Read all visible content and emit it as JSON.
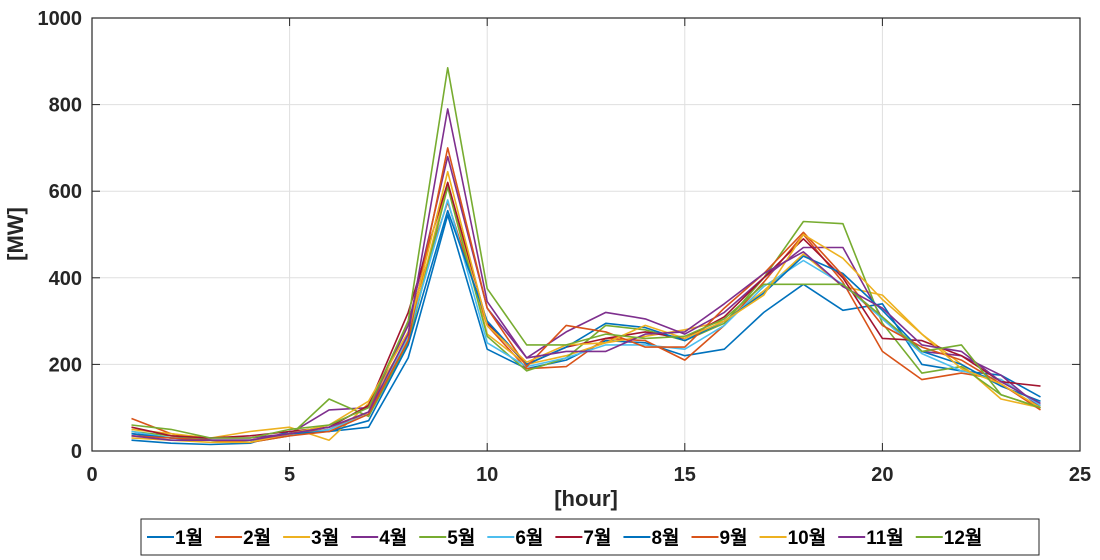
{
  "chart_data": {
    "type": "line",
    "xlabel": "[hour]",
    "ylabel": "[MW]",
    "xlim": [
      0,
      25
    ],
    "ylim": [
      0,
      1000
    ],
    "xticks": [
      0,
      5,
      10,
      15,
      20,
      25
    ],
    "yticks": [
      0,
      200,
      400,
      600,
      800,
      1000
    ],
    "grid": true,
    "legend_position": "bottom",
    "x": [
      1,
      2,
      3,
      4,
      5,
      6,
      7,
      8,
      9,
      10,
      11,
      12,
      13,
      14,
      15,
      16,
      17,
      18,
      19,
      20,
      21,
      22,
      23,
      24
    ],
    "series": [
      {
        "name": "1월",
        "color": "#0072BD",
        "values": [
          25,
          18,
          15,
          18,
          45,
          45,
          55,
          215,
          545,
          235,
          190,
          210,
          255,
          250,
          220,
          235,
          320,
          385,
          325,
          340,
          200,
          185,
          175,
          125
        ]
      },
      {
        "name": "2월",
        "color": "#D95319",
        "values": [
          75,
          40,
          25,
          25,
          40,
          50,
          90,
          300,
          575,
          290,
          190,
          195,
          260,
          255,
          210,
          290,
          390,
          500,
          390,
          230,
          165,
          180,
          165,
          105
        ]
      },
      {
        "name": "3월",
        "color": "#EDB120",
        "values": [
          50,
          40,
          30,
          45,
          55,
          25,
          110,
          260,
          620,
          270,
          200,
          220,
          250,
          265,
          280,
          300,
          370,
          455,
          380,
          360,
          270,
          200,
          120,
          100
        ]
      },
      {
        "name": "4월",
        "color": "#7E2F8E",
        "values": [
          40,
          30,
          30,
          30,
          40,
          95,
          100,
          290,
          680,
          330,
          215,
          275,
          320,
          305,
          270,
          320,
          400,
          470,
          470,
          305,
          230,
          220,
          175,
          100
        ]
      },
      {
        "name": "5월",
        "color": "#77AC30",
        "values": [
          45,
          35,
          25,
          20,
          35,
          120,
          80,
          250,
          610,
          265,
          185,
          215,
          290,
          280,
          255,
          295,
          400,
          530,
          525,
          295,
          180,
          195,
          130,
          100
        ]
      },
      {
        "name": "6월",
        "color": "#4DBEEE",
        "values": [
          45,
          30,
          25,
          25,
          35,
          50,
          85,
          265,
          580,
          250,
          195,
          215,
          245,
          245,
          235,
          290,
          380,
          440,
          385,
          305,
          225,
          185,
          165,
          105
        ]
      },
      {
        "name": "7월",
        "color": "#A2142F",
        "values": [
          55,
          35,
          30,
          35,
          45,
          55,
          105,
          320,
          620,
          295,
          200,
          240,
          260,
          275,
          260,
          310,
          400,
          490,
          400,
          260,
          255,
          220,
          160,
          150
        ]
      },
      {
        "name": "8월",
        "color": "#0072BD",
        "values": [
          40,
          30,
          25,
          20,
          40,
          45,
          70,
          245,
          555,
          300,
          200,
          240,
          295,
          285,
          255,
          300,
          365,
          450,
          410,
          325,
          230,
          200,
          150,
          115
        ]
      },
      {
        "name": "9월",
        "color": "#D95319",
        "values": [
          35,
          30,
          25,
          20,
          35,
          45,
          85,
          255,
          700,
          330,
          195,
          290,
          275,
          240,
          240,
          330,
          410,
          505,
          405,
          290,
          240,
          210,
          155,
          95
        ]
      },
      {
        "name": "10월",
        "color": "#EDB120",
        "values": [
          30,
          25,
          20,
          20,
          40,
          60,
          115,
          275,
          645,
          290,
          205,
          245,
          250,
          290,
          260,
          300,
          360,
          500,
          445,
          350,
          270,
          190,
          155,
          100
        ]
      },
      {
        "name": "11월",
        "color": "#7E2F8E",
        "values": [
          35,
          25,
          25,
          25,
          40,
          55,
          90,
          270,
          790,
          345,
          215,
          230,
          230,
          270,
          275,
          340,
          410,
          460,
          380,
          330,
          245,
          230,
          160,
          110
        ]
      },
      {
        "name": "12월",
        "color": "#77AC30",
        "values": [
          60,
          50,
          30,
          30,
          50,
          60,
          100,
          300,
          885,
          375,
          245,
          245,
          270,
          260,
          265,
          305,
          385,
          385,
          385,
          310,
          230,
          245,
          130,
          100
        ]
      }
    ]
  }
}
